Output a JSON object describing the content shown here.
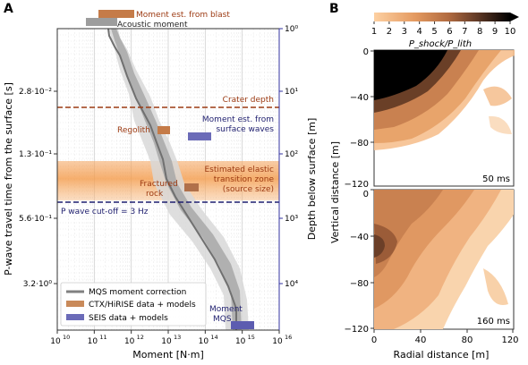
{
  "figure": {
    "panel_a_label": "A",
    "panel_b_label": "B"
  },
  "panel_a": {
    "xlabel": "Moment [N·m]",
    "ylabel_left": "P-wave travel time from the surface [s]",
    "ylabel_right": "Depth below surface [m]",
    "x_ticks": [
      "10",
      "11",
      "12",
      "13",
      "14",
      "15",
      "16"
    ],
    "left_ticks": [
      "2.8·10⁻²",
      "1.3·10⁻¹",
      "5.6·10⁻¹",
      "3.2·10⁰"
    ],
    "right_ticks": [
      "10⁰",
      "10¹",
      "10²",
      "10³",
      "10⁴"
    ],
    "annotations": {
      "blast": "Moment est. from blast",
      "acoustic": "Acoustic moment",
      "crater": "Crater depth",
      "surface_waves_1": "Moment est. from",
      "surface_waves_2": "surface waves",
      "regolith": "Regolith",
      "elastic_1": "Estimated elastic",
      "elastic_2": "transition zone",
      "elastic_3": "(source size)",
      "fractured_1": "Fractured",
      "fractured_2": "rock",
      "cutoff": "P wave cut-off = 3 Hz",
      "mqs_1": "Moment",
      "mqs_2": "MQS"
    },
    "legend": [
      {
        "label": "MQS moment correction",
        "color": "#808080"
      },
      {
        "label": "CTX/HiRISE data + models",
        "color": "#c98a5a"
      },
      {
        "label": "SEIS data + models",
        "color": "#6b6bb8"
      }
    ]
  },
  "panel_b": {
    "colorbar_ticks": [
      "1",
      "2",
      "3",
      "4",
      "5",
      "6",
      "7",
      "8",
      "9",
      "10"
    ],
    "colorbar_label": "P_shock/P_lith",
    "ylabel": "Vertical distance [m]",
    "xlabel": "Radial distance [m]",
    "x_ticks": [
      "0",
      "40",
      "80",
      "120"
    ],
    "y_ticks": [
      "0",
      "−40",
      "−80",
      "−120"
    ],
    "top_time": "50 ms",
    "bottom_time": "160 ms",
    "colors": [
      "#fdd0a2",
      "#f5b27a",
      "#e49a60",
      "#cf8450",
      "#b06a40",
      "#8a5335",
      "#643c28",
      "#42271c",
      "#1f1410",
      "#000000"
    ]
  },
  "chart_data": {
    "type": "line",
    "title": "",
    "xlabel": "Moment [N·m]",
    "ylabel": "P-wave travel time from the surface [s]",
    "x_scale": "log",
    "xlim": [
      10000000000.0,
      1e+16
    ],
    "y_secondary": "Depth below surface [m]",
    "series": [
      {
        "name": "MQS moment correction",
        "x": [
          1000000000000.0,
          1000000000000.0,
          1600000000000.0,
          1600000000000.0,
          5000000000000.0,
          5000000000000.0,
          11000000000000.0,
          13000000000000.0,
          14000000000000.0,
          30000000000000.0,
          50000000000000.0,
          80000000000000.0,
          200000000000000.0,
          500000000000000.0,
          1000000000000000.0,
          1100000000000000.0
        ],
        "depth_m": [
          1,
          2,
          5,
          10,
          20,
          30,
          50,
          100,
          160,
          300,
          600,
          1000,
          3000,
          8000,
          12000,
          20000
        ]
      }
    ],
    "ranges": [
      {
        "name": "Moment est. from blast",
        "group": "CTX/HiRISE data + models",
        "x": [
          300000000000.0,
          3000000000000.0
        ],
        "depth_m": 1
      },
      {
        "name": "Acoustic moment",
        "x": [
          200000000000.0,
          2000000000000.0
        ],
        "depth_m": 1
      },
      {
        "name": "Regolith",
        "group": "CTX/HiRISE data + models",
        "x": [
          7000000000000.0,
          15000000000000.0
        ],
        "depth_m": 50
      },
      {
        "name": "Moment est. from surface waves",
        "group": "SEIS data + models",
        "x": [
          30000000000000.0,
          100000000000000.0
        ],
        "depth_m": 60
      },
      {
        "name": "Fractured rock",
        "group": "CTX/HiRISE data + models",
        "x": [
          15000000000000.0,
          40000000000000.0
        ],
        "depth_m": 300
      },
      {
        "name": "Moment MQS",
        "group": "SEIS data + models",
        "x": [
          700000000000000.0,
          2000000000000000.0
        ],
        "depth_m": 20000
      }
    ],
    "lines": [
      {
        "name": "Crater depth",
        "depth_m": 22
      },
      {
        "name": "P wave cut-off = 3 Hz",
        "depth_m": 900
      }
    ],
    "bands": [
      {
        "name": "Estimated elastic transition zone (source size)",
        "depth_m": [
          100,
          400
        ]
      }
    ]
  }
}
